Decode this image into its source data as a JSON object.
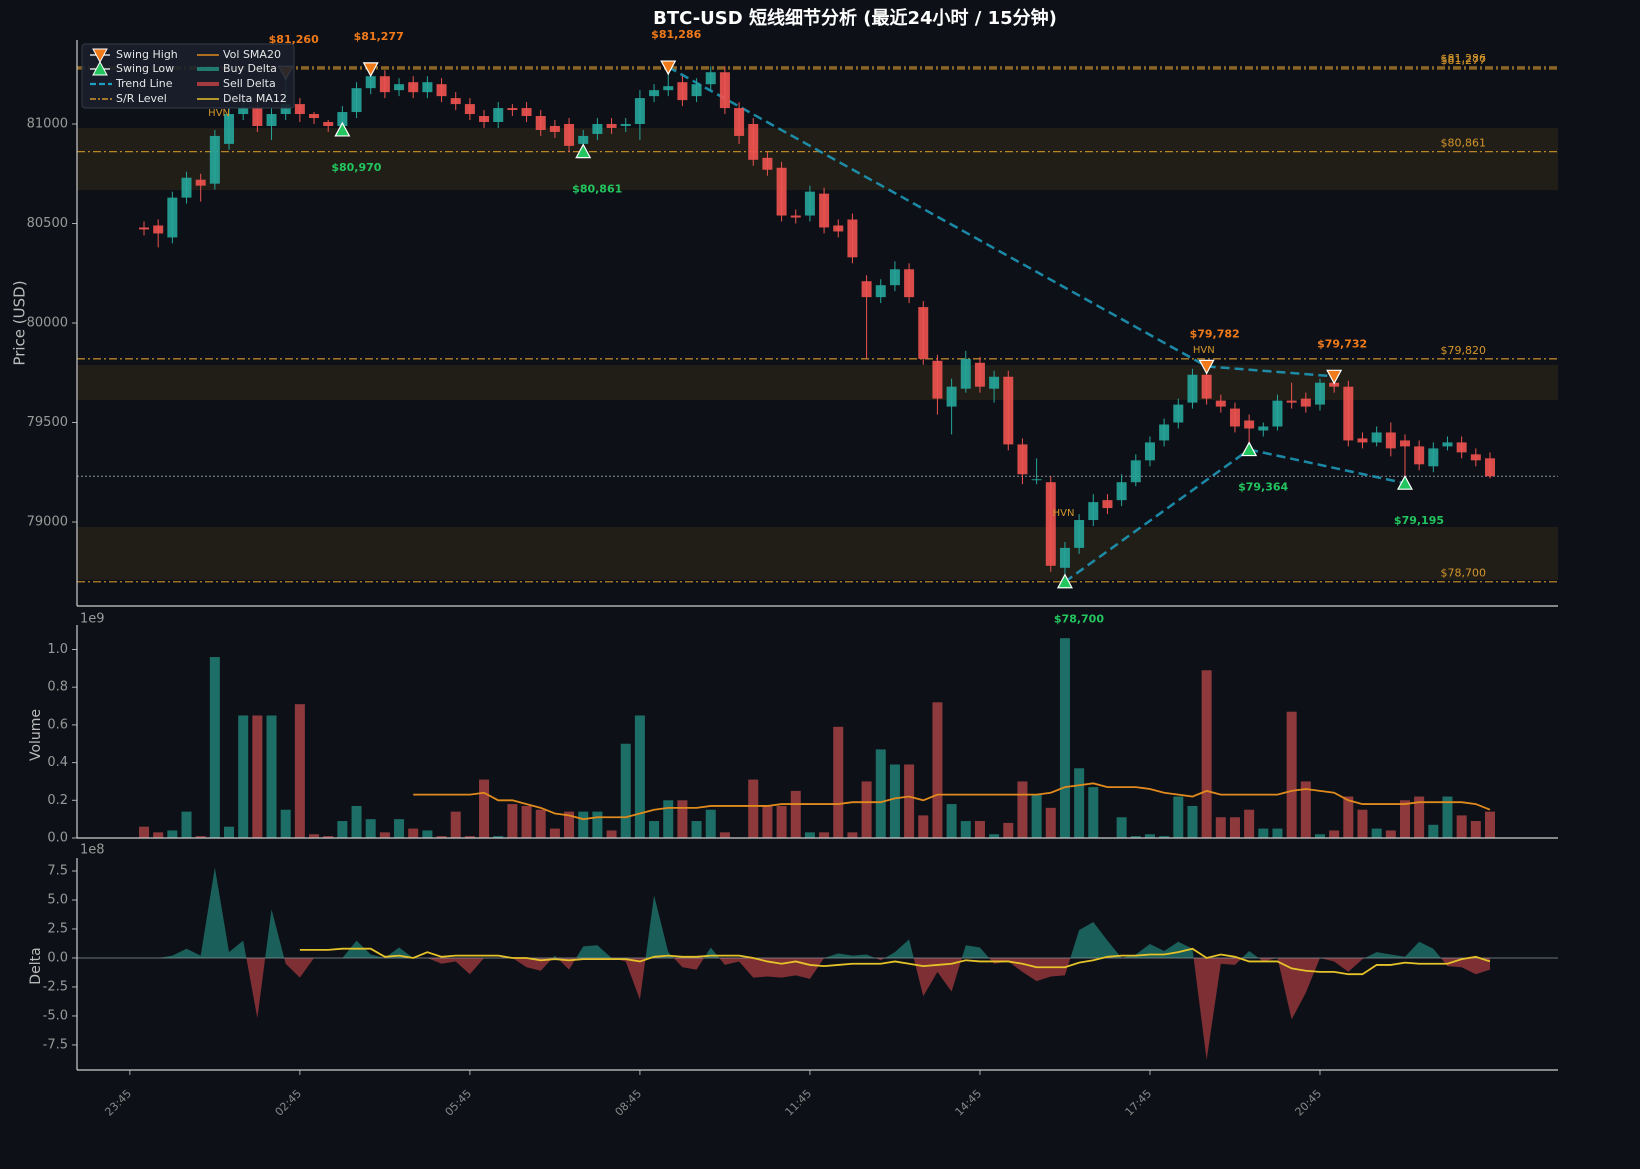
{
  "chart_data": [
    {
      "type": "candlestick",
      "title": "BTC-USD 短线细节分析 (最近24小时 / 15分钟)",
      "ylabel": "Price (USD)",
      "open": [
        80480,
        80490,
        80430,
        80630,
        80720,
        80700,
        80900,
        81050,
        81080,
        80990,
        81050,
        81100,
        81050,
        81010,
        80990,
        81060,
        81180,
        81240,
        81170,
        81210,
        81160,
        81200,
        81130,
        81100,
        81040,
        81010,
        81080,
        81080,
        81040,
        80990,
        81000,
        80900,
        80950,
        81000,
        80990,
        81000,
        81140,
        81170,
        81210,
        81140,
        81200,
        81260,
        81080,
        81000,
        80830,
        80780,
        80540,
        80540,
        80650,
        80490,
        80520,
        80210,
        80130,
        80190,
        80270,
        80080,
        79810,
        79580,
        79670,
        79800,
        79670,
        79730,
        79390,
        79210,
        79200,
        78770,
        78870,
        79010,
        79110,
        79110,
        79200,
        79310,
        79410,
        79500,
        79600,
        79740,
        79610,
        79570,
        79510,
        79460,
        79480,
        79610,
        79620,
        79590,
        79700,
        79680,
        79420,
        79400,
        79450,
        79410,
        79380,
        79280,
        79380,
        79400,
        79340,
        79320
      ],
      "high": [
        80510,
        80520,
        80660,
        80760,
        80750,
        80970,
        81080,
        81110,
        81110,
        81080,
        81260,
        81130,
        81060,
        81020,
        81090,
        81210,
        81277,
        81270,
        81230,
        81240,
        81240,
        81230,
        81160,
        81130,
        81070,
        81110,
        81100,
        81110,
        81070,
        81020,
        81030,
        80970,
        81030,
        81030,
        81030,
        81170,
        81200,
        81286,
        81240,
        81230,
        81290,
        81290,
        81110,
        81030,
        80860,
        80810,
        80570,
        80690,
        80680,
        80520,
        80550,
        80240,
        80220,
        80310,
        80300,
        80110,
        79840,
        79720,
        79860,
        79830,
        79760,
        79760,
        79420,
        79320,
        79230,
        78900,
        79040,
        79140,
        79140,
        79240,
        79340,
        79430,
        79520,
        79620,
        79770,
        79782,
        79640,
        79600,
        79540,
        79500,
        79640,
        79700,
        79650,
        79720,
        79732,
        79710,
        79450,
        79480,
        79500,
        79440,
        79410,
        79400,
        79430,
        79430,
        79370,
        79350
      ],
      "low": [
        80440,
        80380,
        80400,
        80600,
        80610,
        80670,
        80870,
        81020,
        80960,
        80920,
        81020,
        81010,
        81000,
        80960,
        80970,
        81030,
        81150,
        81130,
        81140,
        81130,
        81130,
        81110,
        81070,
        81020,
        80980,
        80980,
        81040,
        81010,
        80940,
        80930,
        80860,
        80861,
        80920,
        80950,
        80960,
        80920,
        81110,
        81140,
        81090,
        81110,
        81170,
        81050,
        80900,
        80790,
        80740,
        80510,
        80500,
        80510,
        80450,
        80430,
        80300,
        79820,
        80100,
        80160,
        80100,
        79790,
        79540,
        79440,
        79650,
        79650,
        79600,
        79360,
        79190,
        79190,
        78750,
        78700,
        78840,
        78980,
        79040,
        79080,
        79180,
        79280,
        79380,
        79470,
        79570,
        79590,
        79550,
        79450,
        79364,
        79430,
        79460,
        79570,
        79550,
        79560,
        79650,
        79380,
        79370,
        79380,
        79330,
        79195,
        79260,
        79250,
        79360,
        79320,
        79280,
        79220
      ],
      "close": [
        80470,
        80450,
        80630,
        80730,
        80690,
        80940,
        81050,
        81080,
        80990,
        81050,
        81100,
        81050,
        81030,
        80990,
        81060,
        81180,
        81240,
        81160,
        81200,
        81160,
        81210,
        81140,
        81100,
        81050,
        81010,
        81080,
        81070,
        81040,
        80970,
        80960,
        80890,
        80940,
        81000,
        80980,
        81000,
        81130,
        81170,
        81190,
        81120,
        81200,
        81260,
        81080,
        80940,
        80820,
        80770,
        80540,
        80530,
        80660,
        80480,
        80460,
        80330,
        80130,
        80190,
        80270,
        80130,
        79820,
        79620,
        79680,
        79820,
        79680,
        79730,
        79390,
        79240,
        79215,
        78780,
        78870,
        79010,
        79100,
        79070,
        79200,
        79310,
        79400,
        79490,
        79590,
        79740,
        79620,
        79580,
        79480,
        79470,
        79480,
        79610,
        79600,
        79580,
        79700,
        79680,
        79410,
        79400,
        79450,
        79370,
        79380,
        79290,
        79370,
        79400,
        79350,
        79310,
        79230
      ],
      "up_color": "#26a69a",
      "down_color": "#ef5350",
      "xlim": [
        -4.73,
        99.8
      ],
      "ylim": [
        78578,
        81422
      ],
      "yticks": [
        79000,
        79500,
        80000,
        80500,
        81000
      ],
      "sr_levels": {
        "name": "S/R Level",
        "color": "#d4952b",
        "levels": [
          {
            "value": 81286,
            "label": "$81,286"
          },
          {
            "value": 81277,
            "label": "$81,277"
          },
          {
            "value": 80861,
            "label": "$80,861"
          },
          {
            "value": 79820,
            "label": "$79,820"
          },
          {
            "value": 78700,
            "label": "$78,700"
          }
        ]
      },
      "zones": [
        [
          80668,
          80980
        ],
        [
          79613,
          79789
        ],
        [
          78709,
          78975
        ]
      ],
      "swing_highs": {
        "name": "Swing High",
        "color": "#f07a1a",
        "points": [
          {
            "index": 10,
            "value": 81260,
            "label": "$81,260"
          },
          {
            "index": 16,
            "value": 81277,
            "label": "$81,277"
          },
          {
            "index": 37,
            "value": 81286,
            "label": "$81,286"
          },
          {
            "index": 75,
            "value": 79782,
            "label": "$79,782"
          },
          {
            "index": 84,
            "value": 79732,
            "label": "$79,732"
          }
        ]
      },
      "swing_lows": {
        "name": "Swing Low",
        "color": "#22c55e",
        "points": [
          {
            "index": 14,
            "value": 80970,
            "label": "$80,970"
          },
          {
            "index": 31,
            "value": 80861,
            "label": "$80,861"
          },
          {
            "index": 65,
            "value": 78700,
            "label": "$78,700"
          },
          {
            "index": 78,
            "value": 79364,
            "label": "$79,364"
          },
          {
            "index": 89,
            "value": 79195,
            "label": "$79,195"
          }
        ]
      },
      "trend_line": {
        "name": "Trend Line",
        "color": "#1e9fc0"
      },
      "annotations": [
        {
          "text": "HVN",
          "index": 5.3,
          "value": 81055
        },
        {
          "text": "HVN",
          "index": 74.8,
          "value": 79864
        },
        {
          "text": "HVN",
          "index": 64.9,
          "value": 79045
        }
      ]
    },
    {
      "type": "bar",
      "ylabel": "Volume",
      "offset_label": "1e9",
      "values": [
        0.06,
        0.03,
        0.04,
        0.14,
        0.01,
        0.96,
        0.06,
        0.65,
        0.65,
        0.65,
        0.15,
        0.71,
        0.02,
        0.01,
        0.09,
        0.17,
        0.1,
        0.03,
        0.1,
        0.05,
        0.04,
        0.01,
        0.14,
        0.01,
        0.31,
        0.01,
        0.18,
        0.17,
        0.15,
        0.05,
        0.14,
        0.14,
        0.14,
        0.04,
        0.5,
        0.65,
        0.09,
        0.2,
        0.2,
        0.09,
        0.15,
        0.03,
        0.0,
        0.31,
        0.17,
        0.17,
        0.25,
        0.03,
        0.03,
        0.59,
        0.03,
        0.3,
        0.47,
        0.39,
        0.39,
        0.12,
        0.72,
        0.18,
        0.09,
        0.09,
        0.02,
        0.08,
        0.3,
        0.23,
        0.16,
        1.06,
        0.37,
        0.27,
        0.0,
        0.11,
        0.01,
        0.02,
        0.01,
        0.22,
        0.17,
        0.89,
        0.11,
        0.11,
        0.15,
        0.05,
        0.05,
        0.67,
        0.3,
        0.02,
        0.04,
        0.22,
        0.15,
        0.05,
        0.04,
        0.2,
        0.22,
        0.07,
        0.22,
        0.12,
        0.09,
        0.14
      ],
      "up_color": "#1d6e66",
      "down_color": "#8e3a3d",
      "ylim": [
        0,
        1.13
      ],
      "yticks": [
        {
          "value": 0,
          "label": "0.0"
        },
        0.2,
        0.4,
        0.6,
        0.8,
        {
          "value": 1,
          "label": "1.0"
        }
      ],
      "sma": {
        "name": "Vol SMA20",
        "color": "#e08a1e",
        "values": [
          null,
          null,
          null,
          null,
          null,
          null,
          null,
          null,
          null,
          null,
          null,
          null,
          null,
          null,
          null,
          null,
          null,
          null,
          null,
          0.23,
          0.23,
          0.23,
          0.23,
          0.23,
          0.24,
          0.2,
          0.2,
          0.18,
          0.16,
          0.13,
          0.12,
          0.1,
          0.11,
          0.11,
          0.11,
          0.13,
          0.15,
          0.16,
          0.16,
          0.16,
          0.17,
          0.17,
          0.17,
          0.17,
          0.17,
          0.18,
          0.18,
          0.18,
          0.18,
          0.18,
          0.19,
          0.19,
          0.19,
          0.21,
          0.22,
          0.2,
          0.23,
          0.23,
          0.23,
          0.23,
          0.23,
          0.23,
          0.23,
          0.23,
          0.24,
          0.27,
          0.28,
          0.29,
          0.27,
          0.27,
          0.27,
          0.26,
          0.24,
          0.23,
          0.22,
          0.25,
          0.23,
          0.23,
          0.23,
          0.23,
          0.23,
          0.25,
          0.26,
          0.25,
          0.24,
          0.2,
          0.18,
          0.18,
          0.18,
          0.18,
          0.19,
          0.19,
          0.19,
          0.19,
          0.18,
          0.15
        ]
      }
    },
    {
      "type": "area",
      "ylabel": "Delta",
      "offset_label": "1e8",
      "values": [
        0,
        0,
        0.2,
        0.8,
        0.2,
        7.8,
        0.5,
        1.5,
        -5.2,
        4.2,
        -0.5,
        -1.7,
        0,
        0,
        0,
        1.5,
        0.3,
        0,
        0.9,
        0,
        0,
        -0.5,
        -0.3,
        -1.4,
        0,
        0,
        0,
        -0.8,
        -1.1,
        0.2,
        -1.0,
        1.0,
        1.1,
        0,
        -0.3,
        -3.6,
        5.4,
        0.5,
        -0.8,
        -1.0,
        0.9,
        -0.6,
        -0.3,
        -1.7,
        -1.6,
        -1.7,
        -1.5,
        -1.8,
        0,
        0.4,
        0.2,
        0.3,
        -0.2,
        0.5,
        1.6,
        -3.3,
        -1.2,
        -2.9,
        1.1,
        0.9,
        -0.5,
        -0.3,
        -1.2,
        -2.0,
        -1.6,
        -1.5,
        2.4,
        3.1,
        1.5,
        0,
        0.3,
        1.2,
        0.6,
        1.4,
        0.8,
        -8.8,
        -0.5,
        -0.6,
        0.6,
        -0.3,
        0,
        -5.3,
        -3.0,
        0,
        -0.3,
        -1.2,
        -0.1,
        0.5,
        0.3,
        0.1,
        1.4,
        0.8,
        -0.7,
        -0.8,
        -1.4,
        -1.0
      ],
      "buy": {
        "name": "Buy Delta",
        "color": "#1f7a70"
      },
      "sell": {
        "name": "Sell Delta",
        "color": "#a33a3f"
      },
      "ma": {
        "name": "Delta MA12",
        "color": "#e6c229",
        "values": [
          null,
          null,
          null,
          null,
          null,
          null,
          null,
          null,
          null,
          null,
          null,
          0.7,
          0.7,
          0.7,
          0.8,
          0.8,
          0.8,
          0.1,
          0.2,
          0.0,
          0.5,
          0.1,
          0.2,
          0.2,
          0.2,
          0.2,
          0.0,
          0.0,
          -0.2,
          -0.1,
          -0.2,
          -0.1,
          -0.1,
          -0.1,
          -0.1,
          -0.3,
          0.1,
          0.2,
          0.1,
          0.1,
          0.2,
          0.2,
          0.2,
          0.0,
          -0.3,
          -0.5,
          -0.3,
          -0.6,
          -0.7,
          -0.6,
          -0.5,
          -0.5,
          -0.5,
          -0.3,
          -0.5,
          -0.7,
          -0.6,
          -0.5,
          -0.2,
          -0.3,
          -0.3,
          -0.3,
          -0.5,
          -0.8,
          -0.8,
          -0.8,
          -0.4,
          -0.2,
          0.1,
          0.2,
          0.2,
          0.3,
          0.3,
          0.5,
          0.8,
          0.0,
          0.3,
          0.1,
          -0.3,
          -0.3,
          -0.3,
          -0.9,
          -1.1,
          -1.2,
          -1.2,
          -1.4,
          -1.4,
          -0.6,
          -0.6,
          -0.4,
          -0.5,
          -0.5,
          -0.5,
          -0.1,
          0.1,
          -0.3
        ]
      },
      "ylim": [
        -9.66,
        8.62
      ],
      "yticks": [
        -7.5,
        {
          "value": -5,
          "label": "-5.0"
        },
        -2.5,
        {
          "value": 0,
          "label": "0.0"
        },
        2.5,
        {
          "value": 5,
          "label": "5.0"
        },
        7.5
      ],
      "xticks": [
        {
          "value": -1,
          "label": "23:45"
        },
        {
          "value": 11,
          "label": "02:45"
        },
        {
          "value": 23,
          "label": "05:45"
        },
        {
          "value": 35,
          "label": "08:45"
        },
        {
          "value": 47,
          "label": "11:45"
        },
        {
          "value": 59,
          "label": "14:45"
        },
        {
          "value": 71,
          "label": "17:45"
        },
        {
          "value": 83,
          "label": "20:45"
        }
      ]
    }
  ]
}
